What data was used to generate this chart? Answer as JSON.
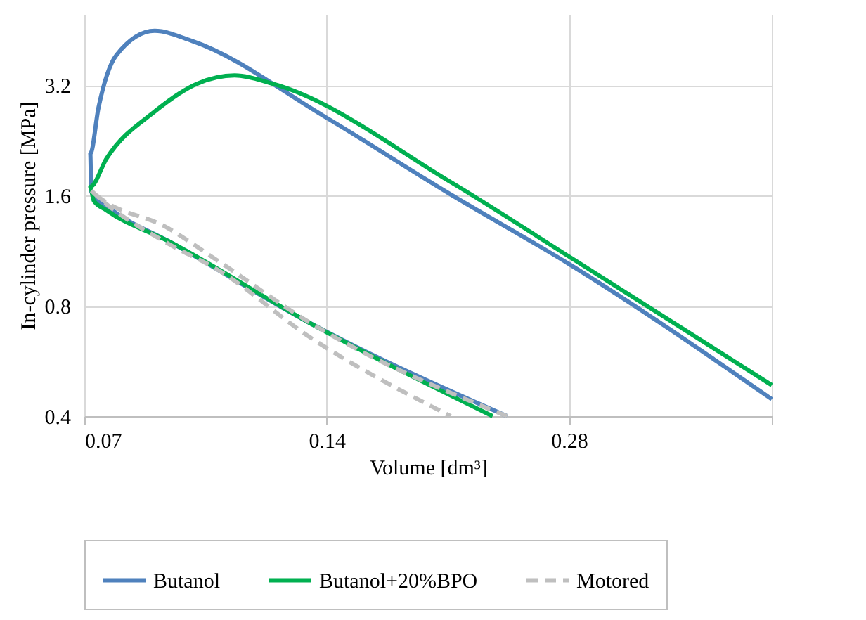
{
  "chart_data": {
    "type": "line",
    "xlabel": "Volume [dm³]",
    "ylabel": "In-cylinder pressure [MPa]",
    "log": "xy",
    "grid": true,
    "legend": "bottom",
    "marker": "none",
    "xlim": [
      0.07,
      0.5
    ],
    "xticks": [
      0.07,
      0.14,
      0.28,
      {
        "value": 0.5,
        "label": null
      }
    ],
    "ylim": [
      0.4,
      5
    ],
    "yticks": [
      0.4,
      0.8,
      1.6,
      3.2
    ],
    "series": [
      {
        "name": "Butanol",
        "color": "#4f81bd",
        "line_style": "solid",
        "x": [
          0.2345,
          0.1334,
          0.0891,
          0.0759,
          0.0714,
          0.0712,
          0.0729,
          0.0767,
          0.0856,
          0.0953,
          0.139,
          0.1996,
          0.28,
          0.5
        ],
        "values": [
          0.4,
          0.718,
          1.2,
          1.457,
          1.636,
          2.08,
          2.78,
          3.86,
          4.5,
          4.22,
          2.63,
          1.61,
          1.04,
          0.445
        ]
      },
      {
        "name": "Butanol+20%BPO",
        "color": "#00b050",
        "line_style": "solid",
        "x": [
          0.225,
          0.1334,
          0.0891,
          0.0746,
          0.0719,
          0.0712,
          0.0746,
          0.0856,
          0.0967,
          0.1076,
          0.1198,
          0.1996,
          0.28,
          0.5
        ],
        "values": [
          0.4,
          0.718,
          1.2,
          1.457,
          1.55,
          1.69,
          2.02,
          2.71,
          3.23,
          3.4,
          3.23,
          1.74,
          1.09,
          0.486
        ]
      },
      {
        "name": "Motored",
        "color": "#bfbfbf",
        "line_style": "dashed",
        "x": [
          0.2345,
          0.1334,
          0.102,
          0.0891,
          0.0714,
          0.0891,
          0.102,
          0.1334,
          0.1996
        ],
        "values": [
          0.4,
          0.72,
          1.07,
          1.3,
          1.65,
          1.18,
          1.01,
          0.657,
          0.4
        ]
      }
    ]
  }
}
